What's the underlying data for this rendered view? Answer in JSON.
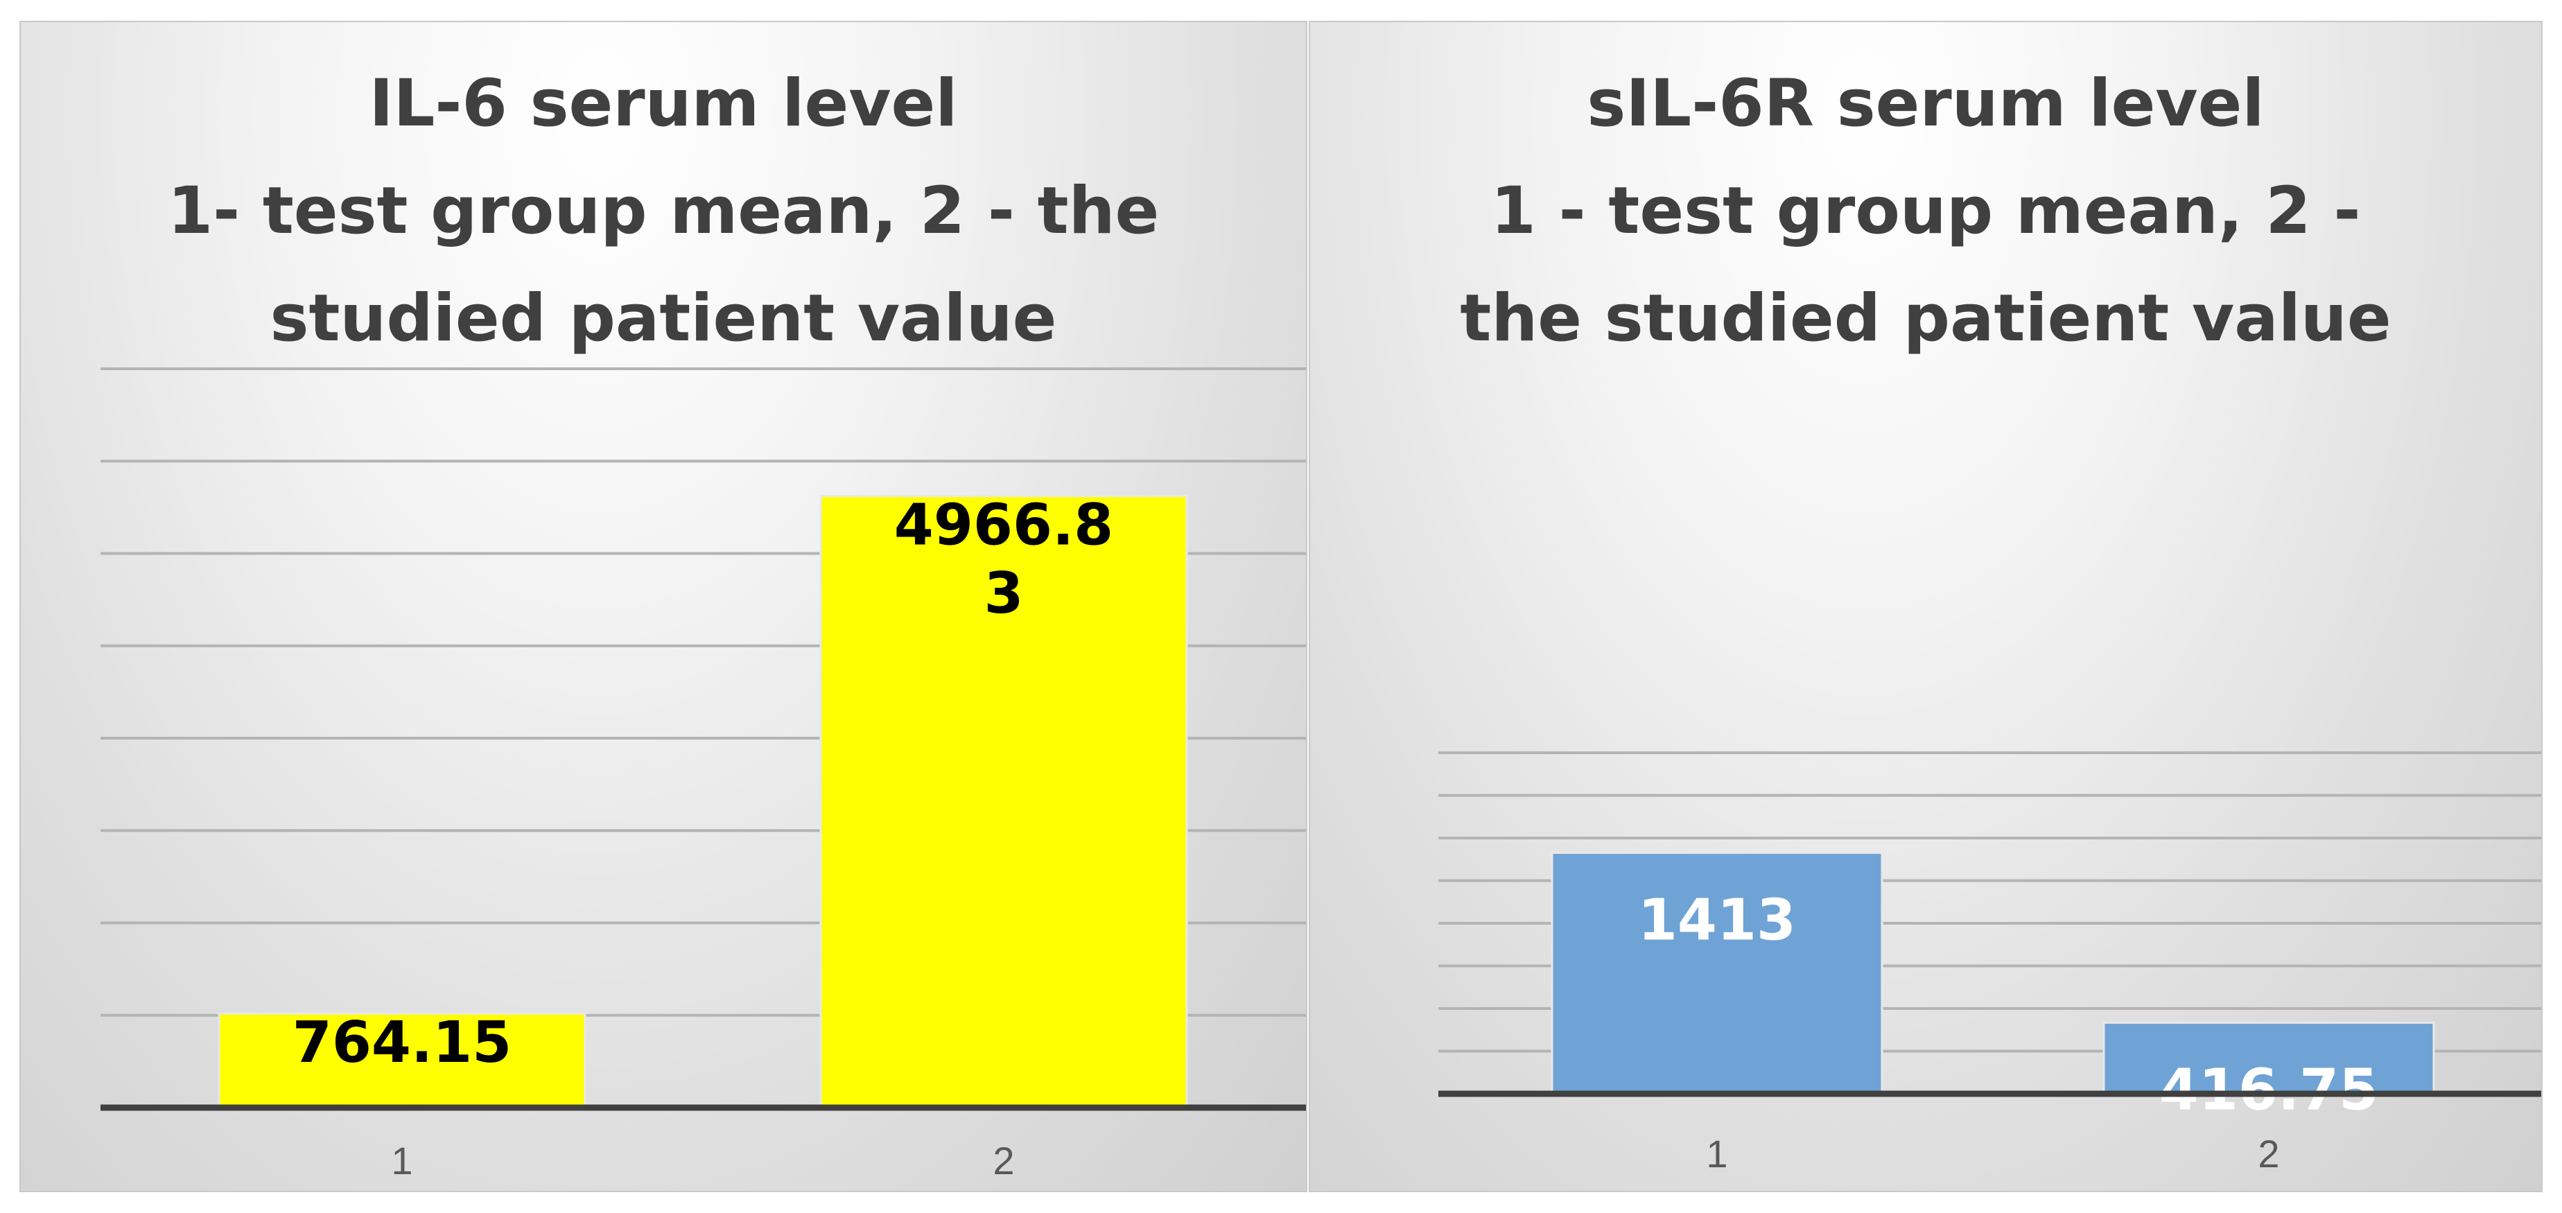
{
  "chart_data": [
    {
      "type": "bar",
      "title": "IL-6 serum level\n1- test group mean, 2 - the\nstudied patient value",
      "categories": [
        "1",
        "2"
      ],
      "values": [
        764.15,
        4966.83
      ],
      "data_labels": [
        "764.15",
        "4966.8\n3"
      ],
      "ylim": [
        0,
        6000
      ],
      "grid": true,
      "legend": "none",
      "bar_color": "#ffff00",
      "label_color": "#000000"
    },
    {
      "type": "bar",
      "title": "sIL-6R serum level\n1 - test group mean, 2 -\nthe studied patient value",
      "categories": [
        "1",
        "2"
      ],
      "values": [
        1413,
        416.75
      ],
      "data_labels": [
        "1413",
        "416.75"
      ],
      "ylim": [
        0,
        2000
      ],
      "grid": true,
      "legend": "none",
      "bar_color": "#6fa3d6",
      "label_color": "#ffffff"
    }
  ]
}
